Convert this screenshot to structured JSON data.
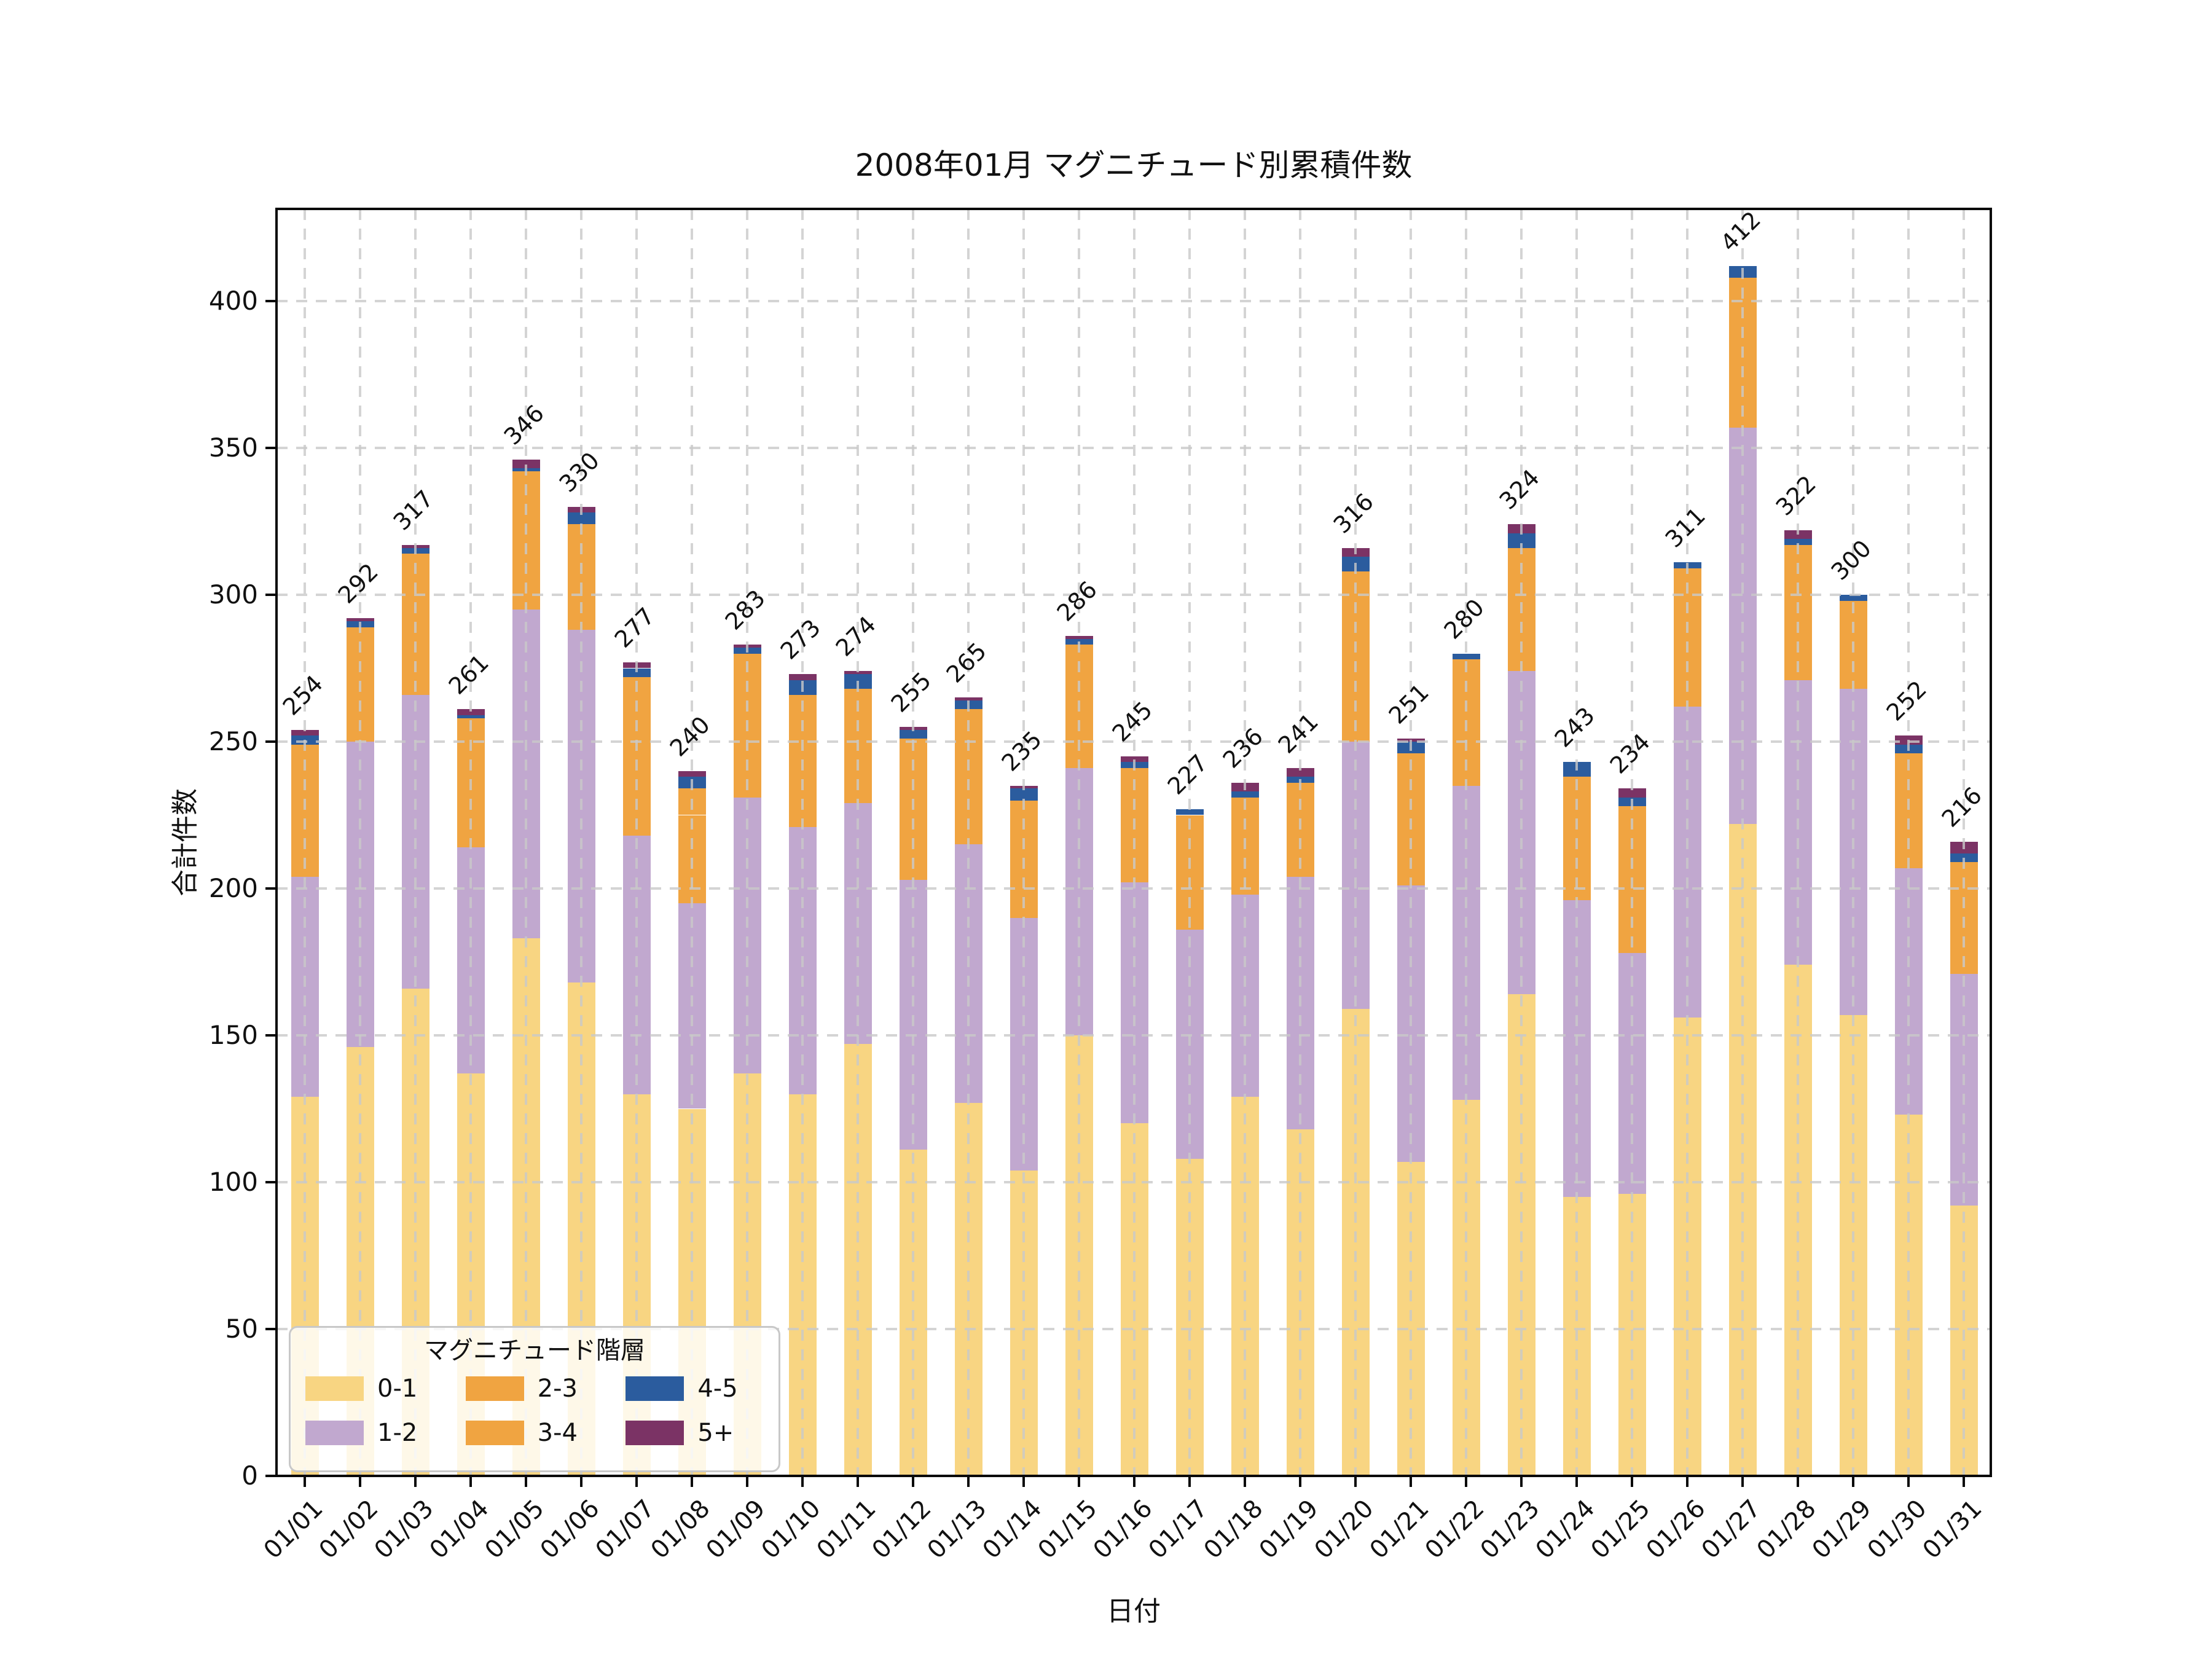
{
  "chart_data": {
    "type": "bar",
    "stacked": true,
    "title": "2008年01月 マグニチュード別累積件数",
    "xlabel": "日付",
    "ylabel": "合計件数",
    "ylim": [
      0,
      430
    ],
    "yticks": [
      0,
      50,
      100,
      150,
      200,
      250,
      300,
      350,
      400
    ],
    "grid": "dashed gridlines on both axes, drawn over bars",
    "legend_title": "マグニチュード階層",
    "legend_position": "lower left",
    "xtick_rotation_deg": 45,
    "total_label_rotation_deg": 45,
    "categories": [
      "01/01",
      "01/02",
      "01/03",
      "01/04",
      "01/05",
      "01/06",
      "01/07",
      "01/08",
      "01/09",
      "01/10",
      "01/11",
      "01/12",
      "01/13",
      "01/14",
      "01/15",
      "01/16",
      "01/17",
      "01/18",
      "01/19",
      "01/20",
      "01/21",
      "01/22",
      "01/23",
      "01/24",
      "01/25",
      "01/26",
      "01/27",
      "01/28",
      "01/29",
      "01/30",
      "01/31"
    ],
    "totals": [
      254,
      292,
      317,
      261,
      346,
      330,
      277,
      240,
      283,
      273,
      274,
      255,
      265,
      235,
      286,
      245,
      227,
      236,
      241,
      316,
      251,
      280,
      324,
      243,
      234,
      311,
      412,
      322,
      300,
      252,
      216
    ],
    "color_note": "series 2-3 and 3-4 are rendered in the same orange; their split is estimated, sums match bar totals",
    "series": [
      {
        "name": "0-1",
        "color": "#F8D582",
        "values": [
          129,
          146,
          166,
          137,
          183,
          168,
          130,
          125,
          137,
          130,
          147,
          111,
          127,
          104,
          150,
          120,
          108,
          129,
          118,
          159,
          107,
          128,
          164,
          95,
          96,
          156,
          222,
          174,
          157,
          123,
          92
        ]
      },
      {
        "name": "1-2",
        "color": "#C1A8CF",
        "values": [
          75,
          104,
          100,
          77,
          112,
          120,
          88,
          70,
          94,
          91,
          82,
          92,
          88,
          86,
          91,
          82,
          78,
          69,
          86,
          91,
          94,
          107,
          110,
          101,
          82,
          106,
          135,
          97,
          111,
          84,
          79
        ]
      },
      {
        "name": "2-3",
        "color": "#F0A441",
        "values": [
          34,
          30,
          36,
          33,
          35,
          27,
          41,
          30,
          37,
          34,
          30,
          36,
          35,
          30,
          32,
          30,
          30,
          25,
          24,
          44,
          34,
          33,
          32,
          32,
          38,
          36,
          39,
          35,
          23,
          30,
          29
        ]
      },
      {
        "name": "3-4",
        "color": "#F0A441",
        "values": [
          11,
          9,
          12,
          11,
          12,
          9,
          13,
          9,
          12,
          11,
          9,
          12,
          11,
          10,
          10,
          9,
          9,
          8,
          8,
          14,
          11,
          10,
          10,
          10,
          12,
          11,
          12,
          11,
          7,
          9,
          9
        ]
      },
      {
        "name": "4-5",
        "color": "#2B5C9E",
        "values": [
          3,
          2,
          2,
          1,
          1,
          4,
          3,
          4,
          2,
          5,
          5,
          3,
          3,
          4,
          2,
          2,
          2,
          2,
          2,
          5,
          4,
          2,
          5,
          5,
          3,
          2,
          4,
          2,
          2,
          3,
          3
        ]
      },
      {
        "name": "5+",
        "color": "#7B3365",
        "values": [
          2,
          1,
          1,
          2,
          3,
          2,
          2,
          2,
          1,
          2,
          1,
          1,
          1,
          1,
          1,
          2,
          0,
          3,
          3,
          3,
          1,
          0,
          3,
          0,
          3,
          0,
          0,
          3,
          0,
          3,
          4
        ]
      }
    ]
  }
}
